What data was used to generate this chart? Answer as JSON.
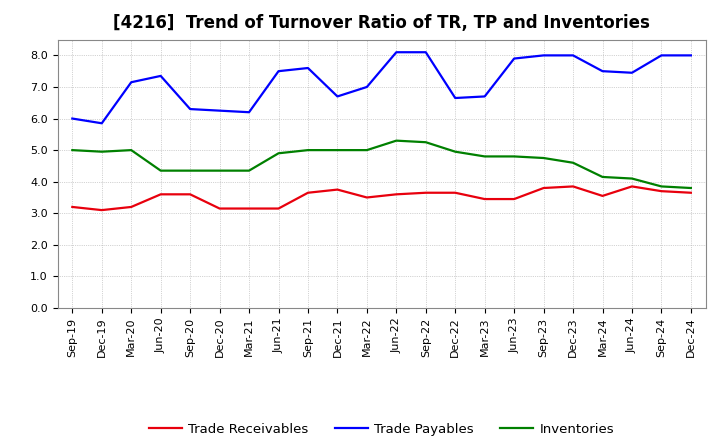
{
  "title": "[4216]  Trend of Turnover Ratio of TR, TP and Inventories",
  "x_labels": [
    "Sep-19",
    "Dec-19",
    "Mar-20",
    "Jun-20",
    "Sep-20",
    "Dec-20",
    "Mar-21",
    "Jun-21",
    "Sep-21",
    "Dec-21",
    "Mar-22",
    "Jun-22",
    "Sep-22",
    "Dec-22",
    "Mar-23",
    "Jun-23",
    "Sep-23",
    "Dec-23",
    "Mar-24",
    "Jun-24",
    "Sep-24",
    "Dec-24"
  ],
  "trade_receivables": [
    3.2,
    3.1,
    3.2,
    3.6,
    3.6,
    3.15,
    3.15,
    3.15,
    3.65,
    3.75,
    3.5,
    3.6,
    3.65,
    3.65,
    3.45,
    3.45,
    3.8,
    3.85,
    3.55,
    3.85,
    3.7,
    3.65
  ],
  "trade_payables": [
    6.0,
    5.85,
    7.15,
    7.35,
    6.3,
    6.25,
    6.2,
    7.5,
    7.6,
    6.7,
    7.0,
    8.1,
    8.1,
    6.65,
    6.7,
    7.9,
    8.0,
    8.0,
    7.5,
    7.45,
    8.0,
    8.0
  ],
  "inventories": [
    5.0,
    4.95,
    5.0,
    4.35,
    4.35,
    4.35,
    4.35,
    4.9,
    5.0,
    5.0,
    5.0,
    5.3,
    5.25,
    4.95,
    4.8,
    4.8,
    4.75,
    4.6,
    4.15,
    4.1,
    3.85,
    3.8
  ],
  "ylim": [
    0.0,
    8.5
  ],
  "yticks": [
    0.0,
    1.0,
    2.0,
    3.0,
    4.0,
    5.0,
    6.0,
    7.0,
    8.0
  ],
  "line_colors": {
    "trade_receivables": "#e8000d",
    "trade_payables": "#0000ff",
    "inventories": "#008000"
  },
  "legend_labels": [
    "Trade Receivables",
    "Trade Payables",
    "Inventories"
  ],
  "bg_color": "#ffffff",
  "plot_bg_color": "#ffffff",
  "grid_color": "#aaaaaa",
  "title_fontsize": 12,
  "tick_fontsize": 8,
  "legend_fontsize": 9.5
}
